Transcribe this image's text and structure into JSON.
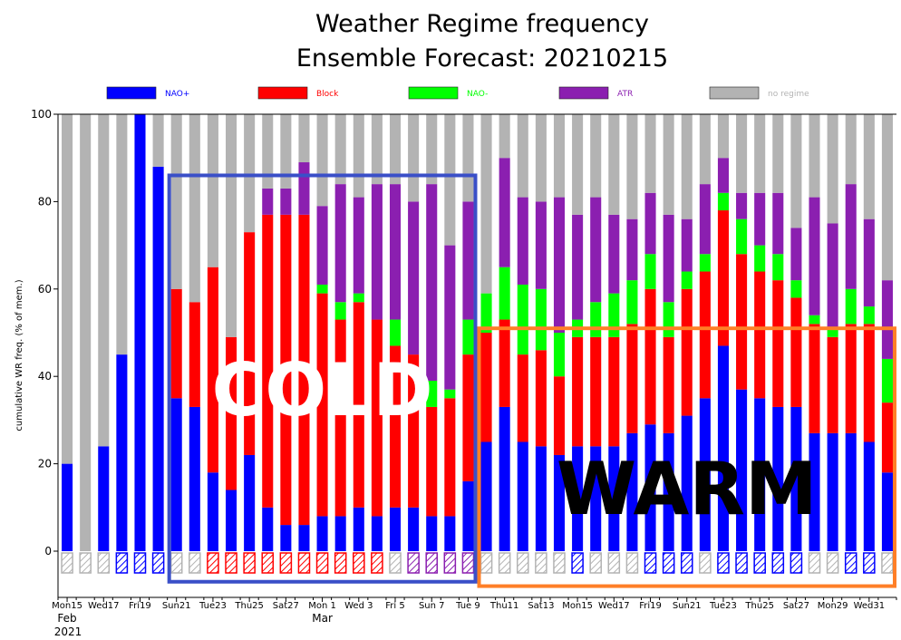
{
  "chart_data": {
    "type": "bar",
    "stacked": true,
    "title": "Weather Regime frequency",
    "subtitle": "Ensemble Forecast: 20210215",
    "ylabel": "cumulative WR freq. (% of mem.)",
    "ylim": [
      -10,
      100
    ],
    "yticks": [
      0,
      20,
      40,
      60,
      80,
      100
    ],
    "legend_position": "top",
    "legend": [
      {
        "name": "NAO+",
        "color": "#0000ff"
      },
      {
        "name": "Block",
        "color": "#ff0000"
      },
      {
        "name": "NAO-",
        "color": "#00ff00"
      },
      {
        "name": "ATR",
        "color": "#8b1fb0"
      },
      {
        "name": "no regime",
        "color": "#b3b3b3"
      }
    ],
    "colors": {
      "NAO+": "#0000ff",
      "Block": "#ff0000",
      "NAO-": "#00ff00",
      "ATR": "#8b1fb0",
      "none": "#b3b3b3",
      "orange": "#ff7f27",
      "box_blue": "#3a4fc8"
    },
    "x_labels": [
      {
        "day": 0,
        "text": "Mon15",
        "color": "#000000"
      },
      {
        "day": 2,
        "text": "Wed17",
        "color": "#000000"
      },
      {
        "day": 4,
        "text": "Fri19",
        "color": "#000000"
      },
      {
        "day": 6,
        "text": "Sun21",
        "color": "#ff0000"
      },
      {
        "day": 8,
        "text": "Tue23",
        "color": "#000000"
      },
      {
        "day": 10,
        "text": "Thu25",
        "color": "#000000"
      },
      {
        "day": 12,
        "text": "Sat27",
        "color": "#000000"
      },
      {
        "day": 14,
        "text": "Mon 1",
        "color": "#000000"
      },
      {
        "day": 16,
        "text": "Wed 3",
        "color": "#000000"
      },
      {
        "day": 18,
        "text": "Fri 5",
        "color": "#000000"
      },
      {
        "day": 20,
        "text": "Sun 7",
        "color": "#ff0000"
      },
      {
        "day": 22,
        "text": "Tue 9",
        "color": "#000000"
      },
      {
        "day": 24,
        "text": "Thu11",
        "color": "#000000"
      },
      {
        "day": 26,
        "text": "Sat13",
        "color": "#000000"
      },
      {
        "day": 28,
        "text": "Mon15",
        "color": "#000000"
      },
      {
        "day": 30,
        "text": "Wed17",
        "color": "#000000"
      },
      {
        "day": 32,
        "text": "Fri19",
        "color": "#000000"
      },
      {
        "day": 34,
        "text": "Sun21",
        "color": "#ff0000"
      },
      {
        "day": 36,
        "text": "Tue23",
        "color": "#000000"
      },
      {
        "day": 38,
        "text": "Thu25",
        "color": "#000000"
      },
      {
        "day": 40,
        "text": "Sat27",
        "color": "#000000"
      },
      {
        "day": 42,
        "text": "Mon29",
        "color": "#000000"
      },
      {
        "day": 44,
        "text": "Wed31",
        "color": "#000000"
      }
    ],
    "month_labels": [
      {
        "day": 0,
        "text": "Feb"
      },
      {
        "day": 14,
        "text": "Mar"
      }
    ],
    "year_label": "2021",
    "days": [
      {
        "nao_plus": 20,
        "block": 0,
        "nao_minus": 0,
        "atr": 0,
        "dominant": "none"
      },
      {
        "nao_plus": 0,
        "block": 0,
        "nao_minus": 0,
        "atr": 0,
        "dominant": "none"
      },
      {
        "nao_plus": 24,
        "block": 0,
        "nao_minus": 0,
        "atr": 0,
        "dominant": "none"
      },
      {
        "nao_plus": 45,
        "block": 0,
        "nao_minus": 0,
        "atr": 0,
        "dominant": "NAO+"
      },
      {
        "nao_plus": 100,
        "block": 0,
        "nao_minus": 0,
        "atr": 0,
        "dominant": "NAO+"
      },
      {
        "nao_plus": 88,
        "block": 0,
        "nao_minus": 0,
        "atr": 0,
        "dominant": "NAO+"
      },
      {
        "nao_plus": 35,
        "block": 25,
        "nao_minus": 0,
        "atr": 0,
        "dominant": "none"
      },
      {
        "nao_plus": 33,
        "block": 24,
        "nao_minus": 0,
        "atr": 0,
        "dominant": "none"
      },
      {
        "nao_plus": 18,
        "block": 47,
        "nao_minus": 0,
        "atr": 0,
        "dominant": "Block"
      },
      {
        "nao_plus": 14,
        "block": 35,
        "nao_minus": 0,
        "atr": 0,
        "dominant": "Block"
      },
      {
        "nao_plus": 22,
        "block": 51,
        "nao_minus": 0,
        "atr": 0,
        "dominant": "Block"
      },
      {
        "nao_plus": 10,
        "block": 67,
        "nao_minus": 0,
        "atr": 6,
        "dominant": "Block"
      },
      {
        "nao_plus": 6,
        "block": 71,
        "nao_minus": 0,
        "atr": 6,
        "dominant": "Block"
      },
      {
        "nao_plus": 6,
        "block": 71,
        "nao_minus": 0,
        "atr": 12,
        "dominant": "Block"
      },
      {
        "nao_plus": 8,
        "block": 51,
        "nao_minus": 2,
        "atr": 18,
        "dominant": "Block"
      },
      {
        "nao_plus": 8,
        "block": 45,
        "nao_minus": 4,
        "atr": 27,
        "dominant": "Block"
      },
      {
        "nao_plus": 10,
        "block": 47,
        "nao_minus": 2,
        "atr": 22,
        "dominant": "Block"
      },
      {
        "nao_plus": 8,
        "block": 45,
        "nao_minus": 0,
        "atr": 31,
        "dominant": "Block"
      },
      {
        "nao_plus": 10,
        "block": 37,
        "nao_minus": 6,
        "atr": 31,
        "dominant": "none"
      },
      {
        "nao_plus": 10,
        "block": 35,
        "nao_minus": 0,
        "atr": 35,
        "dominant": "ATR"
      },
      {
        "nao_plus": 8,
        "block": 25,
        "nao_minus": 6,
        "atr": 45,
        "dominant": "ATR"
      },
      {
        "nao_plus": 8,
        "block": 27,
        "nao_minus": 2,
        "atr": 33,
        "dominant": "ATR"
      },
      {
        "nao_plus": 16,
        "block": 29,
        "nao_minus": 8,
        "atr": 27,
        "dominant": "ATR"
      },
      {
        "nao_plus": 25,
        "block": 25,
        "nao_minus": 9,
        "atr": 0,
        "dominant": "none"
      },
      {
        "nao_plus": 33,
        "block": 20,
        "nao_minus": 12,
        "atr": 25,
        "dominant": "none"
      },
      {
        "nao_plus": 25,
        "block": 20,
        "nao_minus": 16,
        "atr": 20,
        "dominant": "none"
      },
      {
        "nao_plus": 24,
        "block": 22,
        "nao_minus": 14,
        "atr": 20,
        "dominant": "none"
      },
      {
        "nao_plus": 22,
        "block": 18,
        "nao_minus": 10,
        "atr": 31,
        "dominant": "none"
      },
      {
        "nao_plus": 24,
        "block": 25,
        "nao_minus": 4,
        "atr": 24,
        "dominant": "NAO+"
      },
      {
        "nao_plus": 24,
        "block": 25,
        "nao_minus": 8,
        "atr": 24,
        "dominant": "none"
      },
      {
        "nao_plus": 24,
        "block": 25,
        "nao_minus": 10,
        "atr": 18,
        "dominant": "none"
      },
      {
        "nao_plus": 27,
        "block": 25,
        "nao_minus": 10,
        "atr": 14,
        "dominant": "none"
      },
      {
        "nao_plus": 29,
        "block": 31,
        "nao_minus": 8,
        "atr": 14,
        "dominant": "NAO+"
      },
      {
        "nao_plus": 27,
        "block": 22,
        "nao_minus": 8,
        "atr": 20,
        "dominant": "NAO+"
      },
      {
        "nao_plus": 31,
        "block": 29,
        "nao_minus": 4,
        "atr": 12,
        "dominant": "NAO+"
      },
      {
        "nao_plus": 35,
        "block": 29,
        "nao_minus": 4,
        "atr": 16,
        "dominant": "none"
      },
      {
        "nao_plus": 47,
        "block": 31,
        "nao_minus": 4,
        "atr": 8,
        "dominant": "NAO+"
      },
      {
        "nao_plus": 37,
        "block": 31,
        "nao_minus": 8,
        "atr": 6,
        "dominant": "NAO+"
      },
      {
        "nao_plus": 35,
        "block": 29,
        "nao_minus": 6,
        "atr": 12,
        "dominant": "NAO+"
      },
      {
        "nao_plus": 33,
        "block": 29,
        "nao_minus": 6,
        "atr": 14,
        "dominant": "NAO+"
      },
      {
        "nao_plus": 33,
        "block": 25,
        "nao_minus": 4,
        "atr": 12,
        "dominant": "NAO+"
      },
      {
        "nao_plus": 27,
        "block": 25,
        "nao_minus": 2,
        "atr": 27,
        "dominant": "none"
      },
      {
        "nao_plus": 27,
        "block": 22,
        "nao_minus": 2,
        "atr": 24,
        "dominant": "none"
      },
      {
        "nao_plus": 27,
        "block": 25,
        "nao_minus": 8,
        "atr": 24,
        "dominant": "NAO+"
      },
      {
        "nao_plus": 25,
        "block": 27,
        "nao_minus": 4,
        "atr": 20,
        "dominant": "NAO+"
      },
      {
        "nao_plus": 18,
        "block": 16,
        "nao_minus": 10,
        "atr": 18,
        "dominant": "none"
      }
    ],
    "annotations": [
      {
        "text": "COLD",
        "color": "#ffffff",
        "box_from_day": 6,
        "box_to_day": 22,
        "box_top": 86,
        "box_bottom": -7
      },
      {
        "text": "WARM",
        "color": "#000000",
        "box_from_day": 23,
        "box_to_day": 45,
        "box_top": 51,
        "box_bottom": -8
      }
    ]
  }
}
